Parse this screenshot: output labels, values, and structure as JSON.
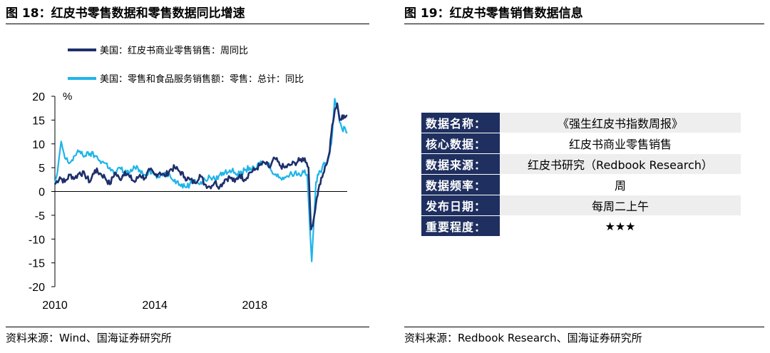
{
  "left_figure": {
    "title": "图 18：红皮书零售数据和零售数据同比增速",
    "source": "资料来源：Wind、国海证券研究所"
  },
  "right_figure": {
    "title": "图 19：红皮书零售销售数据信息",
    "source": "资料来源：Redbook Research、国海证券研究所",
    "rows": [
      {
        "key": "数据名称：",
        "value": "《强生红皮书指数周报》"
      },
      {
        "key": "核心数据：",
        "value": "红皮书商业零售销售"
      },
      {
        "key": "数据来源：",
        "value": "红皮书研究（Redbook Research）"
      },
      {
        "key": "数据频率：",
        "value": "周"
      },
      {
        "key": "发布日期：",
        "value": "每周二上午"
      },
      {
        "key": "重要程度：",
        "value": "★★★"
      }
    ]
  },
  "colors": {
    "series_dark": "#1f2f6b",
    "series_light": "#1fb4ea",
    "table_header": "#1f2f5f"
  },
  "chart_data": {
    "type": "line",
    "unit_label": "%",
    "ylim": [
      -20,
      20
    ],
    "yticks": [
      20,
      15,
      10,
      5,
      0,
      -5,
      -10,
      -15,
      -20
    ],
    "xlim": [
      2010,
      2021.7
    ],
    "xticks": [
      2010,
      2014,
      2018
    ],
    "grid": false,
    "legend_position": "top-left",
    "series": [
      {
        "name": "美国：红皮书商业零售销售：周同比",
        "color": "#1f2f6b",
        "x": [
          2010.0,
          2010.2,
          2010.4,
          2010.6,
          2010.8,
          2011.0,
          2011.2,
          2011.4,
          2011.6,
          2011.8,
          2012.0,
          2012.2,
          2012.4,
          2012.6,
          2012.8,
          2013.0,
          2013.2,
          2013.4,
          2013.6,
          2013.8,
          2014.0,
          2014.2,
          2014.4,
          2014.6,
          2014.8,
          2015.0,
          2015.2,
          2015.4,
          2015.6,
          2015.8,
          2016.0,
          2016.2,
          2016.4,
          2016.6,
          2016.8,
          2017.0,
          2017.2,
          2017.4,
          2017.6,
          2017.8,
          2018.0,
          2018.2,
          2018.4,
          2018.6,
          2018.8,
          2019.0,
          2019.2,
          2019.4,
          2019.6,
          2019.8,
          2020.0,
          2020.15,
          2020.25,
          2020.35,
          2020.45,
          2020.55,
          2020.7,
          2020.85,
          2021.0,
          2021.1,
          2021.2,
          2021.3,
          2021.4,
          2021.5,
          2021.6,
          2021.7
        ],
        "y": [
          1.5,
          3.0,
          2.0,
          3.5,
          2.8,
          4.0,
          3.5,
          2.0,
          4.5,
          3.8,
          3.0,
          1.5,
          4.0,
          2.5,
          4.2,
          3.0,
          2.0,
          3.5,
          2.8,
          4.5,
          3.5,
          4.0,
          3.2,
          4.5,
          5.0,
          4.2,
          3.0,
          2.5,
          1.8,
          3.5,
          1.5,
          1.0,
          2.0,
          1.0,
          2.5,
          3.0,
          2.0,
          3.5,
          2.5,
          4.0,
          4.5,
          5.5,
          6.0,
          5.0,
          7.0,
          5.5,
          5.0,
          5.5,
          6.0,
          6.5,
          7.0,
          5.0,
          -8.0,
          -6.0,
          -2.5,
          0.5,
          3.0,
          5.5,
          8.5,
          14.0,
          17.0,
          18.5,
          15.0,
          16.0,
          15.5,
          16.0
        ]
      },
      {
        "name": "美国：零售和食品服务销售额：零售：总计：同比",
        "color": "#1fb4ea",
        "x": [
          2010.0,
          2010.1,
          2010.25,
          2010.4,
          2010.6,
          2010.8,
          2011.0,
          2011.2,
          2011.4,
          2011.6,
          2011.8,
          2012.0,
          2012.2,
          2012.4,
          2012.6,
          2012.8,
          2013.0,
          2013.2,
          2013.4,
          2013.6,
          2013.8,
          2014.0,
          2014.2,
          2014.4,
          2014.6,
          2014.8,
          2015.0,
          2015.2,
          2015.4,
          2015.6,
          2015.8,
          2016.0,
          2016.2,
          2016.4,
          2016.6,
          2016.8,
          2017.0,
          2017.2,
          2017.4,
          2017.6,
          2017.8,
          2018.0,
          2018.2,
          2018.4,
          2018.6,
          2018.8,
          2019.0,
          2019.2,
          2019.4,
          2019.6,
          2019.8,
          2020.0,
          2020.1,
          2020.2,
          2020.28,
          2020.36,
          2020.45,
          2020.55,
          2020.7,
          2020.85,
          2021.0,
          2021.1,
          2021.2,
          2021.3,
          2021.4,
          2021.5,
          2021.6,
          2021.7
        ],
        "y": [
          1.5,
          4.0,
          10.5,
          7.0,
          6.0,
          7.5,
          8.5,
          7.5,
          8.0,
          7.5,
          6.5,
          6.0,
          5.0,
          3.5,
          5.0,
          4.0,
          4.0,
          5.0,
          4.5,
          3.5,
          4.5,
          3.5,
          3.0,
          4.0,
          3.5,
          2.5,
          1.5,
          1.0,
          1.5,
          2.5,
          1.5,
          2.5,
          3.0,
          2.5,
          3.5,
          4.0,
          4.5,
          4.0,
          3.5,
          4.5,
          5.0,
          4.5,
          6.0,
          6.0,
          5.5,
          3.5,
          3.0,
          3.0,
          3.5,
          4.0,
          3.5,
          4.5,
          3.5,
          -7.0,
          -14.7,
          -7.0,
          2.0,
          3.5,
          5.0,
          6.0,
          8.0,
          12.0,
          19.5,
          17.5,
          14.5,
          13.0,
          13.5,
          12.5
        ]
      }
    ]
  }
}
